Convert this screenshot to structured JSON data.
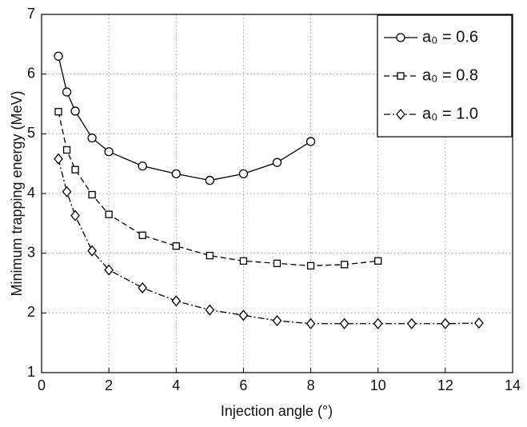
{
  "chart_data": {
    "type": "line",
    "x_label": "Injection angle (°)",
    "y_label": "Minimum trapping energy (MeV)",
    "xlim": [
      0,
      14
    ],
    "xticks": [
      0,
      2,
      4,
      6,
      8,
      10,
      12,
      14
    ],
    "ylim": [
      1,
      7
    ],
    "yticks": [
      1,
      2,
      3,
      4,
      5,
      6,
      7
    ],
    "grid": true,
    "legend": "upper right",
    "series": [
      {
        "name": "a₀ = 0.6",
        "color": "#000000",
        "marker": "circle",
        "linestyle": "solid",
        "x": [
          0.5,
          0.75,
          1,
          1.5,
          2,
          3,
          4,
          5,
          6,
          7,
          8
        ],
        "values": [
          6.3,
          5.7,
          5.38,
          4.93,
          4.7,
          4.46,
          4.33,
          4.22,
          4.33,
          4.52,
          4.87
        ]
      },
      {
        "name": "a₀ = 0.8",
        "color": "#000000",
        "marker": "square",
        "linestyle": "dashed",
        "x": [
          0.5,
          0.75,
          1,
          1.5,
          2,
          3,
          4,
          5,
          6,
          7,
          8,
          9,
          10
        ],
        "values": [
          5.37,
          4.73,
          4.4,
          3.98,
          3.65,
          3.3,
          3.12,
          2.96,
          2.87,
          2.83,
          2.79,
          2.81,
          2.87
        ]
      },
      {
        "name": "a₀ = 1.0",
        "color": "#000000",
        "marker": "diamond",
        "linestyle": "dashdot",
        "x": [
          0.5,
          0.75,
          1,
          1.5,
          2,
          3,
          4,
          5,
          6,
          7,
          8,
          9,
          10,
          11,
          12,
          13
        ],
        "values": [
          4.58,
          4.03,
          3.63,
          3.04,
          2.72,
          2.42,
          2.2,
          2.05,
          1.96,
          1.87,
          1.82,
          1.82,
          1.82,
          1.82,
          1.82,
          1.83
        ]
      }
    ]
  }
}
